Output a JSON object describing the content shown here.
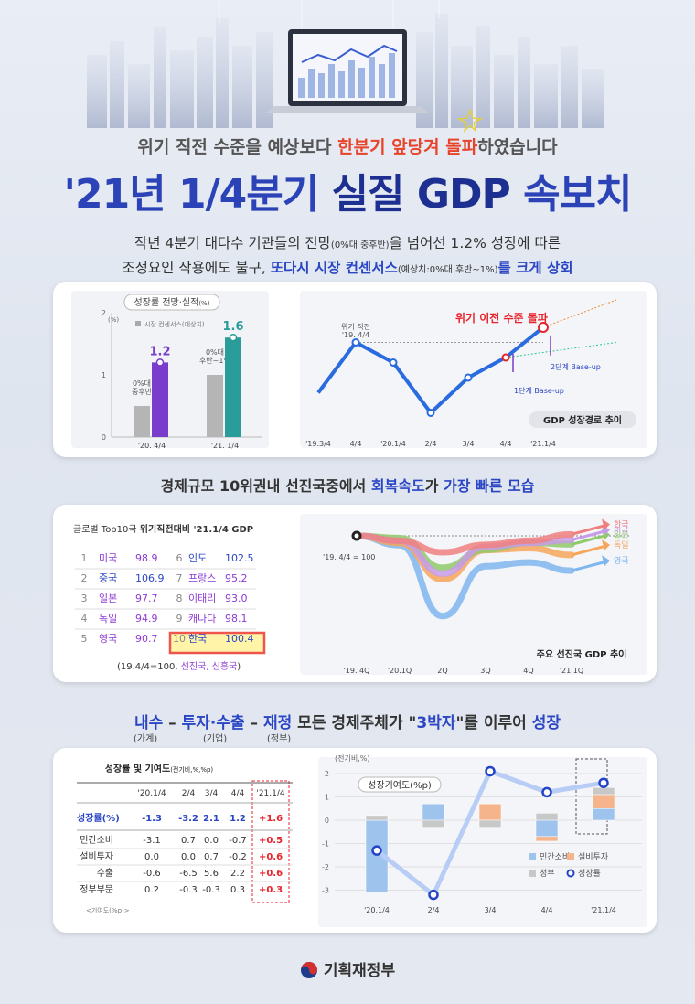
{
  "header": {
    "subtitle_pre": "위기 직전 수준을 예상보다 ",
    "subtitle_em": "한분기 앞당겨 돌파",
    "subtitle_post": "하였습니다",
    "title_pre": "'21년 1/4분기 ",
    "title_bold": "실질 GDP",
    "title_post": " 속보치"
  },
  "intro": {
    "line1_a": "작년 4분기 대다수 기관들의 전망",
    "line1_small": "(0%대 중후반)",
    "line1_b": "을 넘어선 1.2% 성장에 따른",
    "line2_a": "조정요인 작용에도 불구, ",
    "line2_hl": "또다시 시장 컨센서스",
    "line2_small": "(예상치:0%대 후반~1%)",
    "line2_hl2": "를 크게 상회"
  },
  "panel1": {
    "title": "성장률 전망·실적",
    "title_unit": "(%)",
    "legend": "시장 컨센서스(예상치)",
    "y_label": "(%)",
    "chart_data": {
      "type": "bar",
      "title": "성장률 전망·실적",
      "ylabel": "(%)",
      "ylim": [
        0,
        2
      ],
      "y_ticks": [
        "2",
        "1",
        "0"
      ],
      "categories": [
        "'20. 4/4",
        "'21. 1/4"
      ],
      "series": [
        {
          "name": "시장 컨센서스(예상치)",
          "values": [
            0.5,
            1.0
          ],
          "labels": [
            "0%대\n중후반",
            "0%대\n후반~1%"
          ]
        },
        {
          "name": "실적",
          "values": [
            1.2,
            1.6
          ]
        }
      ]
    }
  },
  "panel2": {
    "annotation_main": "위기 이전 수준 돌파",
    "annotation_precrisis": "위기 직전\n'19. 4/4",
    "base_up1": "1단계 Base-up",
    "base_up2": "2단계 Base-up",
    "caption": "GDP 성장경로 추이",
    "chart_data": {
      "type": "line",
      "title": "GDP 성장경로 추이",
      "categories": [
        "'19.3/4",
        "4/4",
        "'20.1/4",
        "2/4",
        "3/4",
        "4/4",
        "'21.1/4"
      ],
      "series": [
        {
          "name": "GDP",
          "values": [
            0.35,
            0.85,
            0.65,
            0.15,
            0.5,
            0.7,
            1.0
          ]
        }
      ]
    }
  },
  "section2": {
    "pre": "경제규모 10위권내 선진국중에서 ",
    "hl1": "회복속도",
    "mid": "가 ",
    "hl2": "가장 빠른 모습"
  },
  "panel3": {
    "title_pre": "글로벌 Top10국 ",
    "title_bold": "위기직전대비 '21.1/4 GDP",
    "rows": [
      {
        "rank": "1",
        "name": "미국",
        "value": "98.9"
      },
      {
        "rank": "2",
        "name": "중국",
        "value": "106.9"
      },
      {
        "rank": "3",
        "name": "일본",
        "value": "97.7"
      },
      {
        "rank": "4",
        "name": "독일",
        "value": "94.9"
      },
      {
        "rank": "5",
        "name": "영국",
        "value": "90.7"
      },
      {
        "rank": "6",
        "name": "인도",
        "value": "102.5"
      },
      {
        "rank": "7",
        "name": "프랑스",
        "value": "95.2"
      },
      {
        "rank": "8",
        "name": "이태리",
        "value": "93.0"
      },
      {
        "rank": "9",
        "name": "캐나다",
        "value": "98.1"
      },
      {
        "rank": "10",
        "name": "한국",
        "value": "100.4"
      }
    ],
    "note_pre": "(19.4/4=100, ",
    "note_hl": "선진국, 신흥국",
    "note_post": ")"
  },
  "panel4": {
    "baseline_label": "'19. 4/4 = 100",
    "caption": "주요 선진국 GDP 추이",
    "chart_data": {
      "type": "line",
      "title": "주요 선진국 GDP 추이",
      "categories": [
        "'19. 4Q",
        "'20.1Q",
        "2Q",
        "3Q",
        "4Q",
        "'21.1Q"
      ],
      "series": [
        {
          "name": "한국",
          "values": [
            100,
            98.7,
            95.6,
            97.6,
            98.7,
            100.4
          ],
          "color": "#f08080"
        },
        {
          "name": "미국",
          "values": [
            100,
            98.7,
            89.9,
            97.1,
            98.1,
            98.9
          ],
          "color": "#c89be8"
        },
        {
          "name": "일본",
          "values": [
            100,
            99.4,
            91.5,
            96.3,
            98.2,
            97.7
          ],
          "color": "#8ec96a"
        },
        {
          "name": "독일",
          "values": [
            100,
            98.1,
            88.4,
            96.2,
            96.7,
            94.9
          ],
          "color": "#f5a65b"
        },
        {
          "name": "영국",
          "values": [
            100,
            97.5,
            78.6,
            91.9,
            92.9,
            90.7
          ],
          "color": "#7fb6ef"
        }
      ]
    }
  },
  "section3": {
    "a": "내수",
    "dash1": " – ",
    "b": "투자·수출",
    "dash2": " – ",
    "c": "재정",
    "rest": " 모든 경제주체가 \"",
    "d": "3박자",
    "rest2": "\"를 이루어 ",
    "e": "성장",
    "sub_a": "(가계)",
    "sub_b": "(기업)",
    "sub_c": "(정부)"
  },
  "panel5": {
    "title": "성장률 및 기여도",
    "title_unit": "(전기비,%,%p)",
    "columns": [
      "'20.1/4",
      "2/4",
      "3/4",
      "4/4",
      "'21.1/4"
    ],
    "rows": [
      {
        "label": "성장률(%)",
        "values": [
          "-1.3",
          "-3.2",
          "2.1",
          "1.2",
          "+1.6"
        ]
      },
      {
        "label": "민간소비",
        "values": [
          "-3.1",
          "0.7",
          "0.0",
          "-0.7",
          "+0.5"
        ]
      },
      {
        "label": "설비투자",
        "values": [
          "0.0",
          "0.0",
          "0.7",
          "-0.2",
          "+0.6"
        ]
      },
      {
        "label": "수출",
        "values": [
          "-0.6",
          "-6.5",
          "5.6",
          "2.2",
          "+0.6"
        ]
      },
      {
        "label": "정부부문",
        "values": [
          "0.2",
          "-0.3",
          "-0.3",
          "0.3",
          "+0.3"
        ]
      }
    ],
    "note": "<기여도(%p)>"
  },
  "panel6": {
    "unit": "(전기비,%)",
    "title": "성장기여도(%p)",
    "chart_data": {
      "type": "bar",
      "title": "성장기여도(%p)",
      "ylabel": "(전기비,%)",
      "ylim": [
        -3,
        2
      ],
      "y_ticks": [
        "2",
        "1",
        "0",
        "-1",
        "-2",
        "-3"
      ],
      "categories": [
        "'20.1/4",
        "2/4",
        "3/4",
        "4/4",
        "'21.1/4"
      ],
      "series": [
        {
          "name": "민간소비",
          "values": [
            -3.1,
            0.7,
            0.0,
            -0.7,
            0.5
          ],
          "color": "#9ec4ee"
        },
        {
          "name": "설비투자",
          "values": [
            0.0,
            0.0,
            0.7,
            -0.2,
            0.6
          ],
          "color": "#f6b48d"
        },
        {
          "name": "정부",
          "values": [
            0.2,
            -0.3,
            -0.3,
            0.3,
            0.3
          ],
          "color": "#c8c8c8"
        },
        {
          "name": "성장률",
          "values": [
            -1.3,
            -3.2,
            2.1,
            1.2,
            1.6
          ],
          "color": "#2444c8"
        }
      ]
    }
  },
  "footer": {
    "org": "기획재정부"
  }
}
